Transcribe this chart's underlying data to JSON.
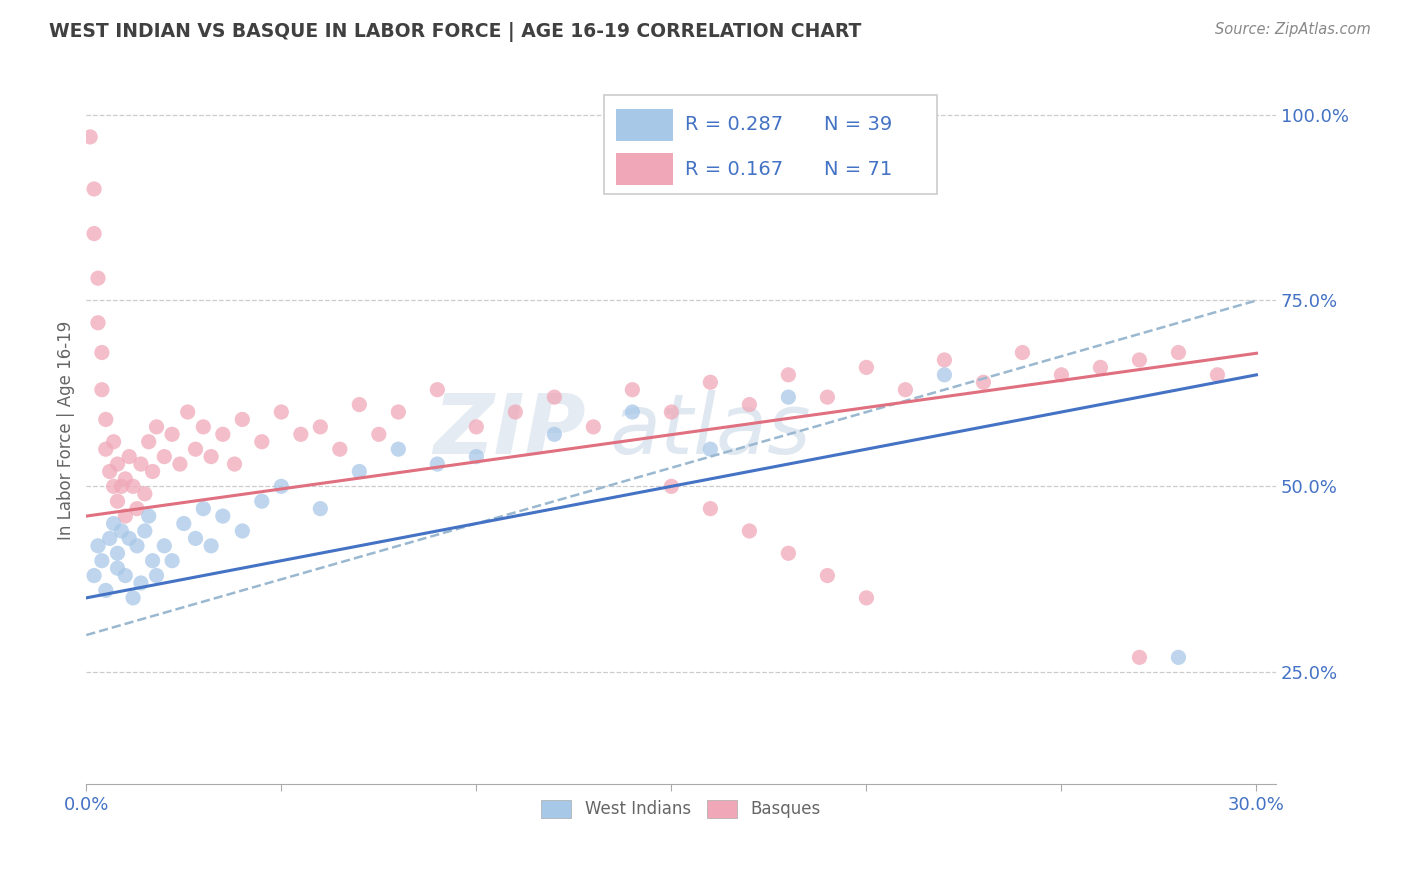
{
  "title": "WEST INDIAN VS BASQUE IN LABOR FORCE | AGE 16-19 CORRELATION CHART",
  "source_text": "Source: ZipAtlas.com",
  "ylabel": "In Labor Force | Age 16-19",
  "watermark_zip": "ZIP",
  "watermark_atlas": "atlas",
  "xlim": [
    0.0,
    0.3
  ],
  "ylim": [
    0.1,
    1.05
  ],
  "legend_R_blue": "0.287",
  "legend_N_blue": "39",
  "legend_R_pink": "0.167",
  "legend_N_pink": "71",
  "blue_color": "#a8c8e8",
  "pink_color": "#f0a8b8",
  "blue_line_color": "#4472c4",
  "pink_line_color": "#e07080",
  "blue_dash_color": "#8ab0d8",
  "title_color": "#404040",
  "label_color": "#4472c4",
  "background_color": "#ffffff",
  "grid_color": "#cccccc",
  "wi_x": [
    0.002,
    0.003,
    0.004,
    0.005,
    0.006,
    0.007,
    0.008,
    0.008,
    0.009,
    0.01,
    0.011,
    0.012,
    0.013,
    0.014,
    0.015,
    0.016,
    0.017,
    0.018,
    0.02,
    0.022,
    0.025,
    0.028,
    0.03,
    0.032,
    0.035,
    0.04,
    0.045,
    0.05,
    0.06,
    0.07,
    0.08,
    0.09,
    0.1,
    0.12,
    0.14,
    0.16,
    0.18,
    0.22,
    0.28
  ],
  "wi_y": [
    0.38,
    0.42,
    0.4,
    0.36,
    0.43,
    0.45,
    0.39,
    0.41,
    0.44,
    0.38,
    0.43,
    0.35,
    0.42,
    0.37,
    0.44,
    0.46,
    0.4,
    0.38,
    0.42,
    0.4,
    0.45,
    0.43,
    0.47,
    0.42,
    0.46,
    0.44,
    0.48,
    0.5,
    0.47,
    0.52,
    0.55,
    0.53,
    0.54,
    0.57,
    0.6,
    0.55,
    0.62,
    0.65,
    0.27
  ],
  "bq_x": [
    0.001,
    0.002,
    0.002,
    0.003,
    0.003,
    0.004,
    0.004,
    0.005,
    0.005,
    0.006,
    0.007,
    0.007,
    0.008,
    0.008,
    0.009,
    0.01,
    0.01,
    0.011,
    0.012,
    0.013,
    0.014,
    0.015,
    0.016,
    0.017,
    0.018,
    0.02,
    0.022,
    0.024,
    0.026,
    0.028,
    0.03,
    0.032,
    0.035,
    0.038,
    0.04,
    0.045,
    0.05,
    0.055,
    0.06,
    0.065,
    0.07,
    0.075,
    0.08,
    0.09,
    0.1,
    0.11,
    0.12,
    0.13,
    0.14,
    0.15,
    0.16,
    0.17,
    0.18,
    0.19,
    0.2,
    0.21,
    0.22,
    0.23,
    0.24,
    0.25,
    0.26,
    0.27,
    0.28,
    0.29,
    0.15,
    0.16,
    0.17,
    0.18,
    0.19,
    0.2,
    0.27
  ],
  "bq_y": [
    0.97,
    0.9,
    0.84,
    0.78,
    0.72,
    0.68,
    0.63,
    0.59,
    0.55,
    0.52,
    0.5,
    0.56,
    0.48,
    0.53,
    0.5,
    0.46,
    0.51,
    0.54,
    0.5,
    0.47,
    0.53,
    0.49,
    0.56,
    0.52,
    0.58,
    0.54,
    0.57,
    0.53,
    0.6,
    0.55,
    0.58,
    0.54,
    0.57,
    0.53,
    0.59,
    0.56,
    0.6,
    0.57,
    0.58,
    0.55,
    0.61,
    0.57,
    0.6,
    0.63,
    0.58,
    0.6,
    0.62,
    0.58,
    0.63,
    0.6,
    0.64,
    0.61,
    0.65,
    0.62,
    0.66,
    0.63,
    0.67,
    0.64,
    0.68,
    0.65,
    0.66,
    0.67,
    0.68,
    0.65,
    0.5,
    0.47,
    0.44,
    0.41,
    0.38,
    0.35,
    0.27
  ]
}
